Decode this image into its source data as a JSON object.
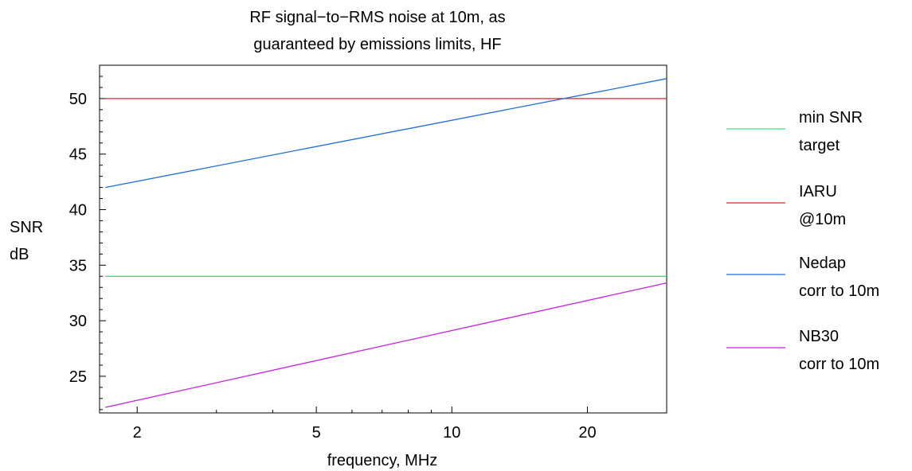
{
  "chart_data": {
    "type": "line",
    "title_lines": [
      "RF signal−to−RMS noise at 10m, as",
      "guaranteed by emissions limits, HF"
    ],
    "xlabel": "frequency, MHz",
    "ylabel_lines": [
      "SNR",
      "dB"
    ],
    "x_scale": "log",
    "xlim": [
      1.65,
      30
    ],
    "ylim": [
      21.7,
      53
    ],
    "xticks": [
      2,
      5,
      10,
      20
    ],
    "yticks": [
      25,
      30,
      35,
      40,
      45,
      50
    ],
    "grid": false,
    "legend_position": "right",
    "series": [
      {
        "legend_lines": [
          "min SNR",
          "target"
        ],
        "color": "#33e380",
        "x": [
          1.7,
          30
        ],
        "y": [
          34,
          34
        ]
      },
      {
        "legend_lines": [
          "IARU",
          "@10m"
        ],
        "color": "#e2252b",
        "x": [
          1.7,
          30
        ],
        "y": [
          50,
          50
        ]
      },
      {
        "legend_lines": [
          "Nedap",
          "corr to 10m"
        ],
        "color": "#1f6fd8",
        "x": [
          1.7,
          30
        ],
        "y": [
          42,
          51.8
        ]
      },
      {
        "legend_lines": [
          "NB30",
          "corr to 10m"
        ],
        "color": "#c61fe0",
        "x": [
          1.7,
          30
        ],
        "y": [
          22.2,
          33.4
        ]
      }
    ]
  }
}
